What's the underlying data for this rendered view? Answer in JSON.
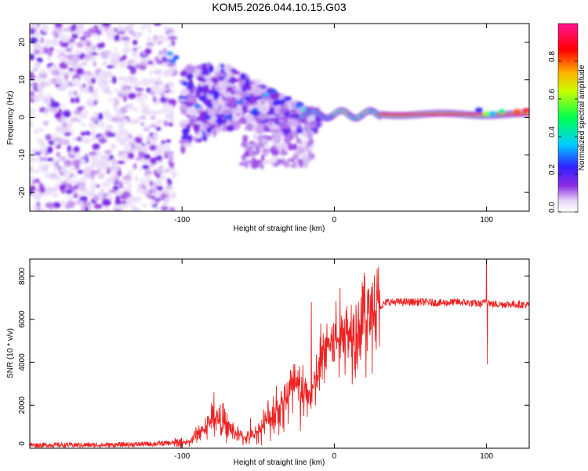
{
  "title": "KOM5.2026.044.10.15.G03",
  "chart_data": [
    {
      "type": "heatmap",
      "title": "KOM5.2026.044.10.15.G03",
      "xlabel": "Height of straight line (km)",
      "ylabel": "Frequency (Hz)",
      "xlim": [
        -200,
        128
      ],
      "ylim": [
        -25,
        25
      ],
      "xticks": [
        -100,
        0,
        100
      ],
      "xtick_labels": [
        "-100",
        "0",
        "100"
      ],
      "yticks": [
        -20,
        -10,
        0,
        10,
        20
      ],
      "ytick_labels": [
        "-20",
        "-10",
        "0",
        "10",
        "20"
      ],
      "colorbar": {
        "label": "Normalized spectral amplitude",
        "range": [
          0.0,
          1.0
        ],
        "ticks": [
          0.0,
          0.2,
          0.4,
          0.6,
          0.8
        ],
        "tick_labels": [
          "0.0",
          "0.2",
          "0.4",
          "0.6",
          "0.8"
        ],
        "colormap": "rainbow (white-violet-blue-cyan-green-yellow-orange-red-magenta)"
      },
      "grid": false
    },
    {
      "type": "line",
      "xlabel": "Height of straight line (km)",
      "ylabel": "SNR (10 * v/v)",
      "xlim": [
        -200,
        128
      ],
      "ylim": [
        0,
        8800
      ],
      "xticks": [
        -100,
        0,
        100
      ],
      "xtick_labels": [
        "-100",
        "0",
        "100"
      ],
      "yticks": [
        0,
        2000,
        4000,
        6000,
        8000
      ],
      "ytick_labels": [
        "0",
        "2000",
        "4000",
        "6000",
        "8000"
      ],
      "series": [
        {
          "name": "SNR",
          "color": "#ee2222",
          "x": [
            -200,
            -150,
            -120,
            -105,
            -95,
            -90,
            -85,
            -80,
            -75,
            -70,
            -65,
            -60,
            -55,
            -50,
            -45,
            -40,
            -35,
            -30,
            -25,
            -20,
            -15,
            -10,
            -5,
            0,
            5,
            10,
            15,
            20,
            25,
            30,
            35,
            40,
            50,
            60,
            70,
            80,
            90,
            97,
            100,
            103,
            110,
            120,
            128
          ],
          "values": [
            150,
            150,
            200,
            250,
            300,
            700,
            900,
            1400,
            1300,
            1000,
            700,
            500,
            500,
            800,
            1200,
            1600,
            2000,
            2500,
            2800,
            2400,
            2600,
            3500,
            4800,
            5000,
            5200,
            5400,
            5600,
            6000,
            6300,
            6600,
            6800,
            6800,
            6800,
            6800,
            6750,
            6800,
            6750,
            6700,
            6900,
            6700,
            6700,
            6700,
            6650
          ],
          "spikes": [
            {
              "x": -79,
              "y": 2600
            },
            {
              "x": -73,
              "y": 2100
            },
            {
              "x": -55,
              "y": 1400
            },
            {
              "x": -38,
              "y": 2900
            },
            {
              "x": -26,
              "y": 3900
            },
            {
              "x": -15,
              "y": 6800
            },
            {
              "x": -9,
              "y": 5800
            },
            {
              "x": -6,
              "y": 5100
            },
            {
              "x": 6,
              "y": 5600
            },
            {
              "x": 13,
              "y": 6200
            },
            {
              "x": 20,
              "y": 8000
            },
            {
              "x": 25,
              "y": 7700
            },
            {
              "x": 100,
              "y": 8900
            },
            {
              "x": 100.5,
              "y": 3900
            }
          ]
        }
      ]
    }
  ]
}
